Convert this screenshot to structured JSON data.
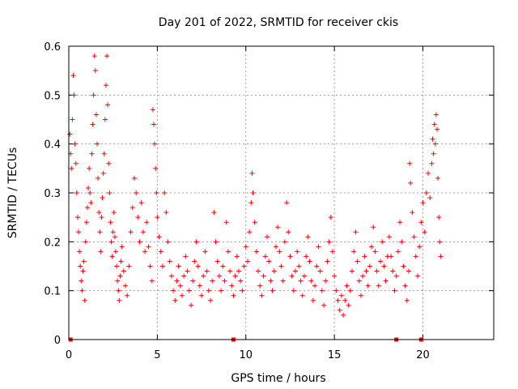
{
  "chart_data": {
    "type": "scatter",
    "title": "Day 201 of 2022, SRMTID for receiver ckis",
    "xlabel": "GPS time / hours",
    "ylabel": "SRMTID / TECUs",
    "xlim": [
      0,
      24
    ],
    "ylim": [
      0,
      0.6
    ],
    "xticks": [
      0,
      5,
      10,
      15,
      20
    ],
    "xtick_labels": [
      "0",
      "5",
      "10",
      "15",
      "20"
    ],
    "yticks": [
      0,
      0.1,
      0.2,
      0.3,
      0.4,
      0.5,
      0.6
    ],
    "ytick_labels": [
      "0",
      "0.1",
      "0.2",
      "0.3",
      "0.4",
      "0.5",
      "0.6"
    ],
    "grid": true,
    "marker": "plus",
    "marker_color": "#ff0000",
    "series": [
      {
        "name": "SRMTID",
        "points": [
          [
            0.05,
            0.42
          ],
          [
            0.1,
            0.38
          ],
          [
            0.15,
            0.35
          ],
          [
            0.2,
            0.45
          ],
          [
            0.25,
            0.54
          ],
          [
            0.3,
            0.5
          ],
          [
            0.35,
            0.4
          ],
          [
            0.4,
            0.36
          ],
          [
            0.45,
            0.3
          ],
          [
            0.5,
            0.25
          ],
          [
            0.55,
            0.22
          ],
          [
            0.6,
            0.18
          ],
          [
            0.65,
            0.15
          ],
          [
            0.7,
            0.12
          ],
          [
            0.75,
            0.1
          ],
          [
            0.8,
            0.14
          ],
          [
            0.85,
            0.16
          ],
          [
            0.9,
            0.08
          ],
          [
            0.95,
            0.2
          ],
          [
            1.0,
            0.24
          ],
          [
            1.05,
            0.27
          ],
          [
            1.1,
            0.31
          ],
          [
            1.15,
            0.35
          ],
          [
            1.2,
            0.3
          ],
          [
            1.25,
            0.28
          ],
          [
            1.3,
            0.38
          ],
          [
            1.35,
            0.44
          ],
          [
            1.4,
            0.5
          ],
          [
            1.45,
            0.58
          ],
          [
            1.5,
            0.55
          ],
          [
            1.55,
            0.46
          ],
          [
            1.6,
            0.4
          ],
          [
            1.65,
            0.33
          ],
          [
            1.7,
            0.26
          ],
          [
            1.75,
            0.22
          ],
          [
            1.8,
            0.18
          ],
          [
            1.85,
            0.25
          ],
          [
            1.9,
            0.29
          ],
          [
            1.95,
            0.34
          ],
          [
            2.0,
            0.38
          ],
          [
            2.05,
            0.45
          ],
          [
            2.1,
            0.52
          ],
          [
            2.15,
            0.58
          ],
          [
            2.2,
            0.48
          ],
          [
            2.25,
            0.36
          ],
          [
            2.3,
            0.3
          ],
          [
            2.35,
            0.24
          ],
          [
            2.4,
            0.2
          ],
          [
            2.45,
            0.17
          ],
          [
            2.5,
            0.22
          ],
          [
            2.55,
            0.26
          ],
          [
            2.6,
            0.21
          ],
          [
            2.65,
            0.18
          ],
          [
            2.7,
            0.15
          ],
          [
            2.75,
            0.12
          ],
          [
            2.8,
            0.1
          ],
          [
            2.85,
            0.08
          ],
          [
            2.9,
            0.13
          ],
          [
            2.95,
            0.16
          ],
          [
            3.0,
            0.19
          ],
          [
            3.1,
            0.14
          ],
          [
            3.2,
            0.11
          ],
          [
            3.3,
            0.09
          ],
          [
            3.4,
            0.15
          ],
          [
            3.5,
            0.22
          ],
          [
            3.6,
            0.27
          ],
          [
            3.7,
            0.33
          ],
          [
            3.8,
            0.3
          ],
          [
            3.9,
            0.25
          ],
          [
            4.0,
            0.2
          ],
          [
            4.1,
            0.28
          ],
          [
            4.2,
            0.22
          ],
          [
            4.3,
            0.18
          ],
          [
            4.4,
            0.24
          ],
          [
            4.5,
            0.19
          ],
          [
            4.6,
            0.15
          ],
          [
            4.7,
            0.12
          ],
          [
            4.75,
            0.47
          ],
          [
            4.8,
            0.44
          ],
          [
            4.85,
            0.4
          ],
          [
            4.9,
            0.35
          ],
          [
            4.95,
            0.3
          ],
          [
            5.0,
            0.25
          ],
          [
            5.1,
            0.21
          ],
          [
            5.2,
            0.18
          ],
          [
            5.3,
            0.15
          ],
          [
            5.4,
            0.3
          ],
          [
            5.5,
            0.26
          ],
          [
            5.6,
            0.2
          ],
          [
            5.7,
            0.16
          ],
          [
            5.8,
            0.13
          ],
          [
            5.9,
            0.1
          ],
          [
            6.0,
            0.08
          ],
          [
            6.1,
            0.12
          ],
          [
            6.2,
            0.15
          ],
          [
            6.3,
            0.11
          ],
          [
            6.4,
            0.09
          ],
          [
            6.5,
            0.13
          ],
          [
            6.6,
            0.17
          ],
          [
            6.7,
            0.14
          ],
          [
            6.8,
            0.1
          ],
          [
            6.9,
            0.07
          ],
          [
            7.0,
            0.12
          ],
          [
            7.1,
            0.16
          ],
          [
            7.2,
            0.2
          ],
          [
            7.3,
            0.15
          ],
          [
            7.4,
            0.11
          ],
          [
            7.5,
            0.09
          ],
          [
            7.6,
            0.13
          ],
          [
            7.7,
            0.18
          ],
          [
            7.8,
            0.14
          ],
          [
            7.9,
            0.1
          ],
          [
            8.0,
            0.08
          ],
          [
            8.1,
            0.12
          ],
          [
            8.2,
            0.26
          ],
          [
            8.3,
            0.2
          ],
          [
            8.4,
            0.16
          ],
          [
            8.5,
            0.13
          ],
          [
            8.6,
            0.1
          ],
          [
            8.7,
            0.15
          ],
          [
            8.8,
            0.12
          ],
          [
            8.9,
            0.24
          ],
          [
            9.0,
            0.18
          ],
          [
            9.1,
            0.14
          ],
          [
            9.2,
            0.11
          ],
          [
            9.3,
            0.09
          ],
          [
            9.4,
            0.13
          ],
          [
            9.5,
            0.17
          ],
          [
            9.6,
            0.14
          ],
          [
            9.7,
            0.12
          ],
          [
            9.8,
            0.1
          ],
          [
            9.9,
            0.15
          ],
          [
            10.0,
            0.19
          ],
          [
            10.1,
            0.16
          ],
          [
            10.2,
            0.22
          ],
          [
            10.3,
            0.28
          ],
          [
            10.35,
            0.34
          ],
          [
            10.4,
            0.3
          ],
          [
            10.5,
            0.24
          ],
          [
            10.6,
            0.18
          ],
          [
            10.7,
            0.14
          ],
          [
            10.8,
            0.11
          ],
          [
            10.9,
            0.09
          ],
          [
            11.0,
            0.13
          ],
          [
            11.1,
            0.17
          ],
          [
            11.2,
            0.21
          ],
          [
            11.3,
            0.16
          ],
          [
            11.4,
            0.12
          ],
          [
            11.5,
            0.1
          ],
          [
            11.6,
            0.14
          ],
          [
            11.7,
            0.19
          ],
          [
            11.8,
            0.23
          ],
          [
            11.9,
            0.18
          ],
          [
            12.0,
            0.15
          ],
          [
            12.1,
            0.12
          ],
          [
            12.2,
            0.2
          ],
          [
            12.3,
            0.28
          ],
          [
            12.4,
            0.22
          ],
          [
            12.5,
            0.17
          ],
          [
            12.6,
            0.13
          ],
          [
            12.7,
            0.1
          ],
          [
            12.8,
            0.14
          ],
          [
            12.9,
            0.18
          ],
          [
            13.0,
            0.15
          ],
          [
            13.1,
            0.12
          ],
          [
            13.2,
            0.09
          ],
          [
            13.3,
            0.13
          ],
          [
            13.4,
            0.17
          ],
          [
            13.5,
            0.21
          ],
          [
            13.6,
            0.16
          ],
          [
            13.7,
            0.12
          ],
          [
            13.8,
            0.08
          ],
          [
            13.9,
            0.11
          ],
          [
            14.0,
            0.15
          ],
          [
            14.1,
            0.19
          ],
          [
            14.2,
            0.14
          ],
          [
            14.3,
            0.1
          ],
          [
            14.4,
            0.07
          ],
          [
            14.5,
            0.12
          ],
          [
            14.6,
            0.16
          ],
          [
            14.7,
            0.2
          ],
          [
            14.8,
            0.25
          ],
          [
            14.9,
            0.18
          ],
          [
            15.0,
            0.13
          ],
          [
            15.1,
            0.1
          ],
          [
            15.2,
            0.08
          ],
          [
            15.3,
            0.06
          ],
          [
            15.4,
            0.09
          ],
          [
            15.5,
            0.05
          ],
          [
            15.6,
            0.08
          ],
          [
            15.7,
            0.11
          ],
          [
            15.8,
            0.07
          ],
          [
            15.9,
            0.1
          ],
          [
            16.0,
            0.14
          ],
          [
            16.1,
            0.18
          ],
          [
            16.2,
            0.22
          ],
          [
            16.3,
            0.16
          ],
          [
            16.4,
            0.12
          ],
          [
            16.5,
            0.09
          ],
          [
            16.6,
            0.13
          ],
          [
            16.7,
            0.17
          ],
          [
            16.8,
            0.14
          ],
          [
            16.9,
            0.11
          ],
          [
            17.0,
            0.15
          ],
          [
            17.1,
            0.19
          ],
          [
            17.2,
            0.23
          ],
          [
            17.3,
            0.18
          ],
          [
            17.4,
            0.14
          ],
          [
            17.5,
            0.11
          ],
          [
            17.6,
            0.16
          ],
          [
            17.7,
            0.2
          ],
          [
            17.8,
            0.15
          ],
          [
            17.9,
            0.12
          ],
          [
            18.0,
            0.17
          ],
          [
            18.1,
            0.21
          ],
          [
            18.2,
            0.17
          ],
          [
            18.3,
            0.14
          ],
          [
            18.4,
            0.1
          ],
          [
            18.5,
            0.13
          ],
          [
            18.6,
            0.18
          ],
          [
            18.7,
            0.24
          ],
          [
            18.8,
            0.2
          ],
          [
            18.9,
            0.15
          ],
          [
            19.0,
            0.11
          ],
          [
            19.1,
            0.08
          ],
          [
            19.2,
            0.14
          ],
          [
            19.25,
            0.36
          ],
          [
            19.3,
            0.32
          ],
          [
            19.4,
            0.26
          ],
          [
            19.5,
            0.21
          ],
          [
            19.6,
            0.17
          ],
          [
            19.7,
            0.13
          ],
          [
            19.8,
            0.19
          ],
          [
            19.9,
            0.24
          ],
          [
            20.0,
            0.28
          ],
          [
            20.1,
            0.22
          ],
          [
            20.2,
            0.3
          ],
          [
            20.3,
            0.34
          ],
          [
            20.4,
            0.29
          ],
          [
            20.5,
            0.36
          ],
          [
            20.55,
            0.41
          ],
          [
            20.6,
            0.38
          ],
          [
            20.65,
            0.44
          ],
          [
            20.7,
            0.4
          ],
          [
            20.75,
            0.46
          ],
          [
            20.8,
            0.43
          ],
          [
            20.85,
            0.33
          ],
          [
            20.9,
            0.25
          ],
          [
            20.95,
            0.2
          ],
          [
            21.0,
            0.17
          ]
        ]
      }
    ],
    "axis_markers": [
      {
        "x": 0.1,
        "y": 0
      },
      {
        "x": 9.3,
        "y": 0
      },
      {
        "x": 18.5,
        "y": 0
      },
      {
        "x": 19.9,
        "y": 0
      }
    ]
  }
}
